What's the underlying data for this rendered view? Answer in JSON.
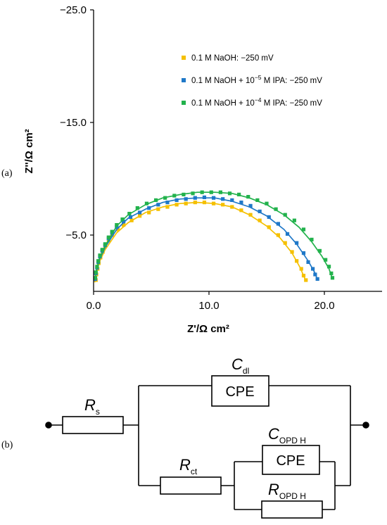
{
  "panel_a_label": "(a)",
  "panel_b_label": "(b)",
  "chart_data": {
    "type": "scatter",
    "xlabel": "Z'/Ω cm²",
    "ylabel": "Z''/Ω cm²",
    "xlim": [
      0,
      25
    ],
    "ylim": [
      0,
      -25
    ],
    "x_ticks": [
      "0.0",
      "10.0",
      "20.0"
    ],
    "y_ticks": [
      "−25.0",
      "−15.0",
      "−5.0"
    ],
    "legend_position": "top-right",
    "grid": false,
    "series": [
      {
        "name": "0.1 M NaOH: −250 mV",
        "legend": {
          "prefix": "0.1 M NaOH: ",
          "suffix": "−250 mV"
        },
        "color": "#F5C000",
        "points": [
          [
            0.2,
            -1.0
          ],
          [
            0.25,
            -1.5
          ],
          [
            0.35,
            -2.0
          ],
          [
            0.45,
            -2.5
          ],
          [
            0.6,
            -3.0
          ],
          [
            0.8,
            -3.5
          ],
          [
            1.0,
            -4.0
          ],
          [
            1.3,
            -4.5
          ],
          [
            1.6,
            -5.0
          ],
          [
            2.1,
            -5.5
          ],
          [
            2.6,
            -5.9
          ],
          [
            3.3,
            -6.3
          ],
          [
            4.0,
            -6.7
          ],
          [
            4.8,
            -7.0
          ],
          [
            5.6,
            -7.3
          ],
          [
            6.4,
            -7.5
          ],
          [
            7.2,
            -7.7
          ],
          [
            8.0,
            -7.8
          ],
          [
            8.8,
            -7.9
          ],
          [
            9.6,
            -7.9
          ],
          [
            10.4,
            -7.8
          ],
          [
            11.2,
            -7.7
          ],
          [
            12.0,
            -7.5
          ],
          [
            12.8,
            -7.2
          ],
          [
            13.6,
            -6.8
          ],
          [
            14.4,
            -6.3
          ],
          [
            15.2,
            -5.7
          ],
          [
            16.0,
            -5.0
          ],
          [
            16.6,
            -4.3
          ],
          [
            17.2,
            -3.5
          ],
          [
            17.6,
            -2.7
          ],
          [
            18.0,
            -2.0
          ],
          [
            18.2,
            -1.4
          ],
          [
            18.4,
            -1.0
          ]
        ],
        "fit": [
          [
            0.1,
            -0.8
          ],
          [
            0.2,
            -1.5
          ],
          [
            0.5,
            -2.6
          ],
          [
            1.0,
            -3.7
          ],
          [
            2.0,
            -5.2
          ],
          [
            3.0,
            -6.1
          ],
          [
            4.5,
            -7.0
          ],
          [
            6.0,
            -7.5
          ],
          [
            7.5,
            -7.8
          ],
          [
            9.0,
            -7.9
          ],
          [
            10.5,
            -7.8
          ],
          [
            12.0,
            -7.5
          ],
          [
            13.5,
            -6.8
          ],
          [
            15.0,
            -5.8
          ],
          [
            16.2,
            -4.7
          ],
          [
            17.2,
            -3.4
          ],
          [
            17.9,
            -2.1
          ],
          [
            18.4,
            -0.9
          ]
        ]
      },
      {
        "name": "0.1 M NaOH + 10−5 M IPA: −250 mV",
        "legend": {
          "prefix": "0.1 M NaOH + 10",
          "sup": "−5",
          "mid": " M IPA:  ",
          "suffix": "−250 mV"
        },
        "color": "#1F78C8",
        "points": [
          [
            0.15,
            -1.1
          ],
          [
            0.2,
            -1.6
          ],
          [
            0.3,
            -2.1
          ],
          [
            0.4,
            -2.6
          ],
          [
            0.55,
            -3.1
          ],
          [
            0.75,
            -3.6
          ],
          [
            1.0,
            -4.1
          ],
          [
            1.3,
            -4.7
          ],
          [
            1.6,
            -5.2
          ],
          [
            2.0,
            -5.7
          ],
          [
            2.6,
            -6.2
          ],
          [
            3.2,
            -6.6
          ],
          [
            4.0,
            -7.0
          ],
          [
            4.8,
            -7.4
          ],
          [
            5.6,
            -7.7
          ],
          [
            6.4,
            -7.9
          ],
          [
            7.2,
            -8.1
          ],
          [
            8.0,
            -8.2
          ],
          [
            8.8,
            -8.3
          ],
          [
            9.6,
            -8.35
          ],
          [
            10.4,
            -8.3
          ],
          [
            11.2,
            -8.2
          ],
          [
            12.0,
            -8.1
          ],
          [
            12.8,
            -7.9
          ],
          [
            13.6,
            -7.6
          ],
          [
            14.4,
            -7.1
          ],
          [
            15.2,
            -6.6
          ],
          [
            16.0,
            -6.0
          ],
          [
            16.8,
            -5.1
          ],
          [
            17.6,
            -4.3
          ],
          [
            18.2,
            -3.4
          ],
          [
            18.6,
            -2.6
          ],
          [
            19.0,
            -2.0
          ],
          [
            19.2,
            -1.5
          ],
          [
            19.4,
            -1.1
          ]
        ],
        "fit": [
          [
            0.1,
            -0.9
          ],
          [
            0.2,
            -1.6
          ],
          [
            0.5,
            -2.8
          ],
          [
            1.0,
            -3.9
          ],
          [
            2.0,
            -5.5
          ],
          [
            3.0,
            -6.5
          ],
          [
            4.5,
            -7.3
          ],
          [
            6.0,
            -7.9
          ],
          [
            7.5,
            -8.2
          ],
          [
            9.0,
            -8.3
          ],
          [
            10.5,
            -8.3
          ],
          [
            12.0,
            -8.0
          ],
          [
            13.5,
            -7.5
          ],
          [
            15.0,
            -6.7
          ],
          [
            16.5,
            -5.5
          ],
          [
            17.6,
            -4.2
          ],
          [
            18.6,
            -2.7
          ],
          [
            19.2,
            -1.6
          ],
          [
            19.4,
            -1.0
          ]
        ]
      },
      {
        "name": "0.1 M NaOH + 10−4 M IPA: −250 mV",
        "legend": {
          "prefix": "0.1 M NaOH + 10",
          "sup": "−4",
          "mid": " M IPA:  ",
          "suffix": "−250 mV"
        },
        "color": "#22B24C",
        "points": [
          [
            0.15,
            -1.2
          ],
          [
            0.2,
            -1.7
          ],
          [
            0.3,
            -2.2
          ],
          [
            0.4,
            -2.7
          ],
          [
            0.55,
            -3.2
          ],
          [
            0.75,
            -3.7
          ],
          [
            1.0,
            -4.2
          ],
          [
            1.3,
            -4.8
          ],
          [
            1.6,
            -5.3
          ],
          [
            2.0,
            -5.9
          ],
          [
            2.5,
            -6.4
          ],
          [
            3.1,
            -6.9
          ],
          [
            3.8,
            -7.4
          ],
          [
            4.6,
            -7.8
          ],
          [
            5.4,
            -8.1
          ],
          [
            6.2,
            -8.3
          ],
          [
            7.0,
            -8.5
          ],
          [
            7.8,
            -8.6
          ],
          [
            8.6,
            -8.7
          ],
          [
            9.4,
            -8.8
          ],
          [
            10.2,
            -8.8
          ],
          [
            11.0,
            -8.8
          ],
          [
            11.8,
            -8.7
          ],
          [
            12.6,
            -8.6
          ],
          [
            13.4,
            -8.4
          ],
          [
            14.2,
            -8.1
          ],
          [
            15.0,
            -7.8
          ],
          [
            15.8,
            -7.3
          ],
          [
            16.6,
            -6.8
          ],
          [
            17.4,
            -6.3
          ],
          [
            18.2,
            -5.5
          ],
          [
            18.9,
            -4.6
          ],
          [
            19.6,
            -3.6
          ],
          [
            20.1,
            -2.8
          ],
          [
            20.4,
            -2.2
          ],
          [
            20.6,
            -1.6
          ],
          [
            20.7,
            -1.2
          ]
        ],
        "fit": [
          [
            0.1,
            -1.0
          ],
          [
            0.2,
            -1.7
          ],
          [
            0.5,
            -2.9
          ],
          [
            1.0,
            -4.0
          ],
          [
            2.0,
            -5.8
          ],
          [
            3.0,
            -6.8
          ],
          [
            4.5,
            -7.7
          ],
          [
            6.0,
            -8.3
          ],
          [
            7.5,
            -8.6
          ],
          [
            9.0,
            -8.8
          ],
          [
            10.5,
            -8.8
          ],
          [
            12.0,
            -8.7
          ],
          [
            13.5,
            -8.3
          ],
          [
            15.0,
            -7.7
          ],
          [
            16.5,
            -6.8
          ],
          [
            17.8,
            -5.7
          ],
          [
            18.9,
            -4.4
          ],
          [
            19.8,
            -3.1
          ],
          [
            20.4,
            -2.0
          ],
          [
            20.7,
            -1.1
          ]
        ]
      }
    ]
  },
  "circuit": {
    "rs": {
      "main": "R",
      "sub": "s"
    },
    "cdl": {
      "main": "C",
      "sub": "dl"
    },
    "rct": {
      "main": "R",
      "sub": "ct"
    },
    "copdh": {
      "main": "C",
      "sub": "OPD H"
    },
    "ropdh": {
      "main": "R",
      "sub": "OPD H"
    },
    "cpe_label": "CPE"
  }
}
